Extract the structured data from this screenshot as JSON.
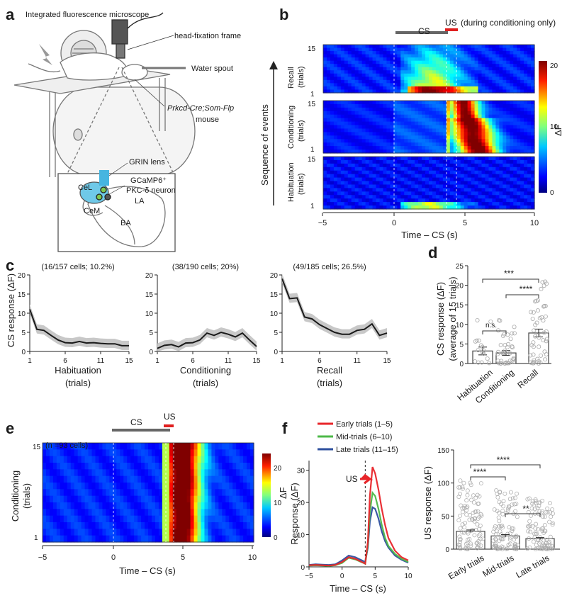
{
  "panel_letters": {
    "a": "a",
    "b": "b",
    "c": "c",
    "d": "d",
    "e": "e",
    "f": "f"
  },
  "panel_a": {
    "microscope": "Integrated fluorescence microscope",
    "frame": "head-fixation frame",
    "spout": "Water spout",
    "mouse_genotype": "Prkcd-Cre;Som-Flp",
    "mouse": "mouse",
    "grin": "GRIN lens",
    "gcamp": "GCaMP6⁺",
    "neuron": "PKC-δ neuron",
    "regions": [
      "CeL",
      "CeM",
      "LA",
      "BA"
    ]
  },
  "panel_b": {
    "cs_label": "CS",
    "us_label": "US",
    "us_note": "(during conditioning only)",
    "sequence_label": "Sequence of events",
    "blocks": [
      {
        "name": "Recall",
        "sub": "(trials)",
        "top": "15",
        "bottom": "1"
      },
      {
        "name": "Conditioning",
        "sub": "(trials)",
        "top": "15",
        "bottom": "1"
      },
      {
        "name": "Habituation",
        "sub": "(trials)",
        "top": "15",
        "bottom": "1"
      }
    ],
    "xticks": [
      "−5",
      "0",
      "5",
      "10"
    ],
    "xlabel": "Time – CS (s)",
    "colorbar": {
      "label": "ΔF",
      "ticks": [
        "20",
        "10",
        "0"
      ]
    }
  },
  "panel_c": {
    "ylabel": "CS response (ΔF)",
    "yticks": [
      "20",
      "15",
      "10",
      "5",
      "0"
    ],
    "xticks": [
      "1",
      "6",
      "11",
      "15"
    ],
    "subplots": [
      {
        "title": "(16/157 cells; 10.2%)",
        "xlabel": "Habituation",
        "xsub": "(trials)"
      },
      {
        "title": "(38/190 cells; 20%)",
        "xlabel": "Conditioning",
        "xsub": "(trials)"
      },
      {
        "title": "(49/185 cells; 26.5%)",
        "xlabel": "Recall",
        "xsub": "(trials)"
      }
    ]
  },
  "panel_d": {
    "ylabel": "CS response (ΔF)",
    "ylabel2": "(average of 15 trials)",
    "yticks": [
      "25",
      "20",
      "15",
      "10",
      "5",
      "0"
    ],
    "sig": [
      "***",
      "****",
      "n.s."
    ],
    "categories": [
      "Habituation",
      "Conditioning",
      "Recall"
    ]
  },
  "panel_e": {
    "cs_label": "CS",
    "us_label": "US",
    "n_cells": "(n =93 cells)",
    "ylabel": "Conditioning",
    "ysub": "(trials)",
    "ytop": "15",
    "ybottom": "1",
    "xticks": [
      "−5",
      "0",
      "5",
      "10"
    ],
    "xlabel": "Time – CS (s)",
    "colorbar": {
      "label": "ΔF",
      "ticks": [
        "20",
        "10",
        "0"
      ]
    }
  },
  "panel_f": {
    "legend": [
      "Early trials (1–5)",
      "Mid-trials (6–10)",
      "Late trials (11–15)"
    ],
    "legend_colors": [
      "#e8252a",
      "#4db848",
      "#2e4f9e"
    ],
    "us_arrow": "US",
    "ylabel": "Response (ΔF)",
    "yticks": [
      "30",
      "20",
      "10",
      "0"
    ],
    "xticks": [
      "−5",
      "0",
      "5",
      "10"
    ],
    "xlabel": "Time – CS (s)",
    "bar_ylabel": "US response (ΔF)",
    "bar_yticks": [
      "150",
      "100",
      "50",
      "0"
    ],
    "bar_sig": [
      "****",
      "****",
      "**"
    ],
    "bar_categories": [
      "Early trials",
      "Mid-trials",
      "Late trials"
    ]
  },
  "chart_data": [
    {
      "id": "c-habituation",
      "type": "line",
      "xlabel": "Habituation (trials)",
      "ylabel": "CS response (ΔF)",
      "x": [
        1,
        2,
        3,
        4,
        5,
        6,
        7,
        8,
        9,
        10,
        11,
        12,
        13,
        14,
        15
      ],
      "values": [
        11,
        5.8,
        5.5,
        4.2,
        3,
        2.3,
        2.2,
        2.6,
        2.2,
        2.3,
        2.1,
        2,
        2,
        1.5,
        1.5
      ],
      "ylim": [
        0,
        20
      ]
    },
    {
      "id": "c-conditioning",
      "type": "line",
      "xlabel": "Conditioning (trials)",
      "ylabel": "CS response (ΔF)",
      "x": [
        1,
        2,
        3,
        4,
        5,
        6,
        7,
        8,
        9,
        10,
        11,
        12,
        13,
        14,
        15
      ],
      "values": [
        0.8,
        1.6,
        1.8,
        1.2,
        2.2,
        2.3,
        3,
        4.8,
        4.2,
        5,
        4.5,
        3.8,
        4.8,
        3,
        1.3
      ],
      "ylim": [
        0,
        20
      ]
    },
    {
      "id": "c-recall",
      "type": "line",
      "xlabel": "Recall (trials)",
      "ylabel": "CS response (ΔF)",
      "x": [
        1,
        2,
        3,
        4,
        5,
        6,
        7,
        8,
        9,
        10,
        11,
        12,
        13,
        14,
        15
      ],
      "values": [
        19,
        13.8,
        14,
        9,
        8.5,
        7,
        6,
        5,
        4.5,
        4.5,
        5.5,
        5.8,
        7.2,
        4.2,
        4.8
      ],
      "ylim": [
        0,
        20
      ]
    },
    {
      "id": "d-bars",
      "type": "bar",
      "categories": [
        "Habituation",
        "Conditioning",
        "Recall"
      ],
      "values": [
        3.2,
        2.7,
        7.8
      ],
      "errors": [
        1,
        0.6,
        1
      ],
      "ylim": [
        0,
        25
      ]
    },
    {
      "id": "f-traces",
      "type": "line",
      "xlabel": "Time – CS (s)",
      "ylabel": "Response (ΔF)",
      "x": [
        -5,
        -4,
        -3,
        -2,
        -1,
        0,
        1,
        2,
        3,
        3.5,
        3.9,
        4.2,
        4.6,
        5,
        5.5,
        6,
        6.5,
        7,
        8,
        9,
        10
      ],
      "series": [
        {
          "name": "Early trials (1–5)",
          "values": [
            0.5,
            0.6,
            0.5,
            0.4,
            0.6,
            1.5,
            3,
            2.5,
            1.5,
            1,
            8,
            22,
            31,
            29,
            24,
            18,
            13,
            9,
            5,
            3,
            2
          ]
        },
        {
          "name": "Mid-trials (6–10)",
          "values": [
            0.4,
            0.5,
            0.4,
            0.3,
            0.5,
            1.2,
            2.8,
            2.3,
            1.4,
            1,
            7,
            17,
            23,
            22,
            18,
            13,
            9,
            6.5,
            4,
            2.5,
            1.5
          ]
        },
        {
          "name": "Late trials (11–15)",
          "values": [
            0.6,
            0.8,
            0.7,
            0.6,
            0.8,
            2,
            3.5,
            3,
            2,
            1.5,
            6,
            14,
            18.5,
            18,
            15,
            11,
            8,
            6,
            3.5,
            2.2,
            1.3
          ]
        }
      ],
      "ylim": [
        0,
        33
      ]
    },
    {
      "id": "f-bars",
      "type": "bar",
      "categories": [
        "Early trials",
        "Mid-trials",
        "Late trials"
      ],
      "values": [
        27,
        20,
        16
      ],
      "errors": [
        2,
        2,
        1.5
      ],
      "ylim": [
        0,
        150
      ]
    }
  ]
}
